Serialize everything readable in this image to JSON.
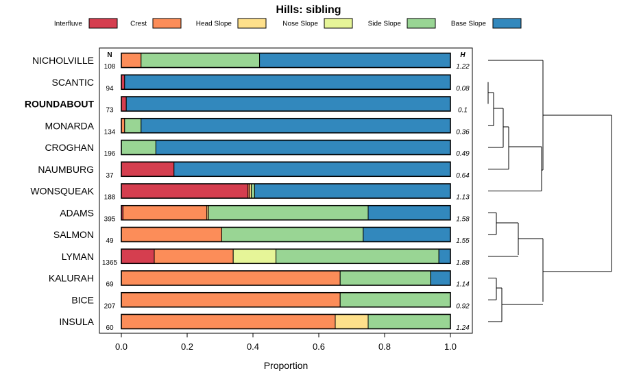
{
  "chart_data": {
    "type": "bar",
    "orientation": "horizontal",
    "stacked": true,
    "title": "Hills: sibling",
    "xlabel": "Proportion",
    "ylabel": "",
    "xlim": [
      0,
      1
    ],
    "xticks": [
      "0.0",
      "0.2",
      "0.4",
      "0.6",
      "0.8",
      "1.0"
    ],
    "legend_position": "top",
    "n_header": "N",
    "h_header": "H",
    "colors": {
      "Interfluve": "#d53e4f",
      "Crest": "#fc8d59",
      "Head Slope": "#fee08b",
      "Nose Slope": "#e6f598",
      "Side Slope": "#99d594",
      "Base Slope": "#3288bd"
    },
    "series_names": [
      "Interfluve",
      "Crest",
      "Head Slope",
      "Nose Slope",
      "Side Slope",
      "Base Slope"
    ],
    "categories": [
      "NICHOLVILLE",
      "SCANTIC",
      "ROUNDABOUT",
      "MONARDA",
      "CROGHAN",
      "NAUMBURG",
      "WONSQUEAK",
      "ADAMS",
      "SALMON",
      "LYMAN",
      "KALURAH",
      "BICE",
      "INSULA"
    ],
    "highlighted": "ROUNDABOUT",
    "n": [
      "108",
      "94",
      "73",
      "134",
      "196",
      "37",
      "188",
      "395",
      "49",
      "1365",
      "69",
      "207",
      "60"
    ],
    "h": [
      "1.22",
      "0.08",
      "0.1",
      "0.36",
      "0.49",
      "0.64",
      "1.13",
      "1.58",
      "1.55",
      "1.88",
      "1.14",
      "0.92",
      "1.24"
    ],
    "values": [
      [
        0.0,
        0.06,
        0.0,
        0.0,
        0.36,
        0.58
      ],
      [
        0.01,
        0.0,
        0.0,
        0.0,
        0.0,
        0.99
      ],
      [
        0.015,
        0.0,
        0.0,
        0.0,
        0.0,
        0.985
      ],
      [
        0.0,
        0.01,
        0.0,
        0.0,
        0.05,
        0.94
      ],
      [
        0.0,
        0.0,
        0.0,
        0.0,
        0.105,
        0.895
      ],
      [
        0.16,
        0.0,
        0.0,
        0.0,
        0.0,
        0.84
      ],
      [
        0.385,
        0.005,
        0.005,
        0.0,
        0.01,
        0.595
      ],
      [
        0.005,
        0.255,
        0.005,
        0.0,
        0.485,
        0.25
      ],
      [
        0.0,
        0.305,
        0.0,
        0.0,
        0.43,
        0.265
      ],
      [
        0.1,
        0.24,
        0.0,
        0.13,
        0.495,
        0.035
      ],
      [
        0.0,
        0.665,
        0.0,
        0.0,
        0.275,
        0.06
      ],
      [
        0.0,
        0.665,
        0.0,
        0.0,
        0.335,
        0.0
      ],
      [
        0.0,
        0.65,
        0.1,
        0.0,
        0.25,
        0.0
      ]
    ],
    "dendrogram": "hierarchical clustering of soil series (right panel)"
  }
}
